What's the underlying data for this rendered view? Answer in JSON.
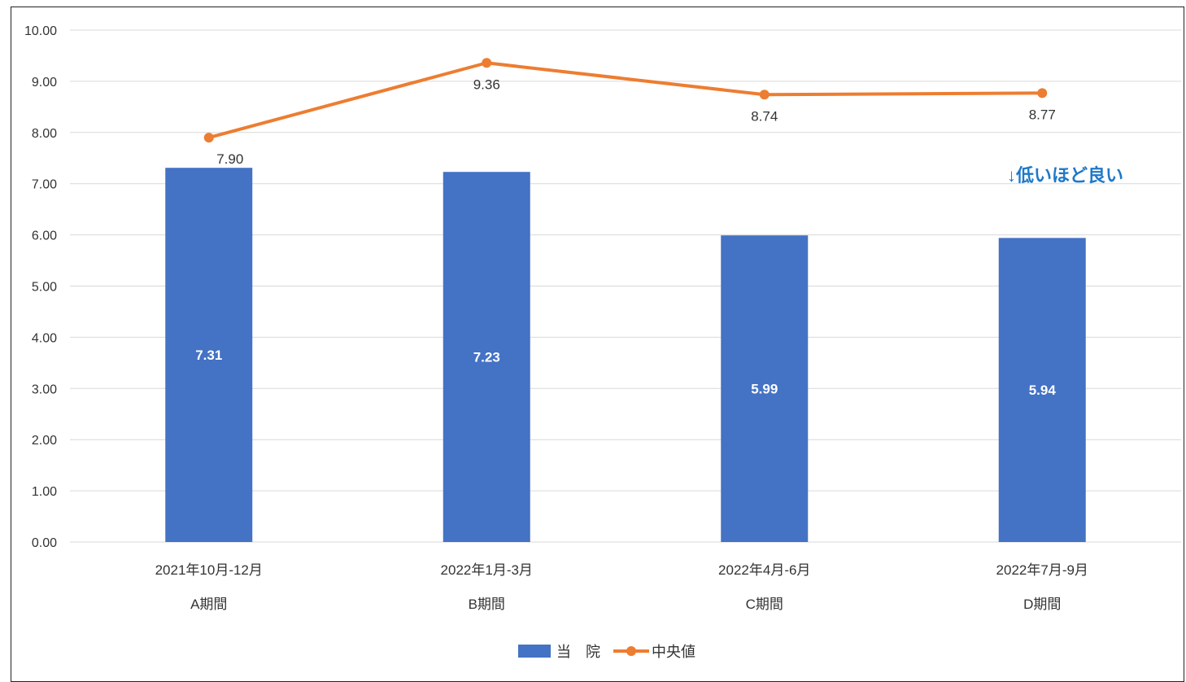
{
  "chart_data": {
    "type": "bar",
    "categories": [
      [
        "2021年10月-12月",
        "A期間"
      ],
      [
        "2022年1月-3月",
        "B期間"
      ],
      [
        "2022年4月-6月",
        "C期間"
      ],
      [
        "2022年7月-9月",
        "D期間"
      ]
    ],
    "series": [
      {
        "name": "当　院",
        "type": "bar",
        "color": "#4472C4",
        "values": [
          7.31,
          7.23,
          5.99,
          5.94
        ],
        "labels": [
          "7.31",
          "7.23",
          "5.99",
          "5.94"
        ]
      },
      {
        "name": "中央値",
        "type": "line",
        "color": "#ED7D31",
        "values": [
          7.9,
          9.36,
          8.74,
          8.77
        ],
        "labels": [
          "7.90",
          "9.36",
          "8.74",
          "8.77"
        ]
      }
    ],
    "ylim": [
      0,
      10
    ],
    "yticks": [
      "0.00",
      "1.00",
      "2.00",
      "3.00",
      "4.00",
      "5.00",
      "6.00",
      "7.00",
      "8.00",
      "9.00",
      "10.00"
    ],
    "grid": true,
    "legend_position": "bottom",
    "annotation": "↓低いほど良い",
    "title": "",
    "xlabel": "",
    "ylabel": ""
  }
}
